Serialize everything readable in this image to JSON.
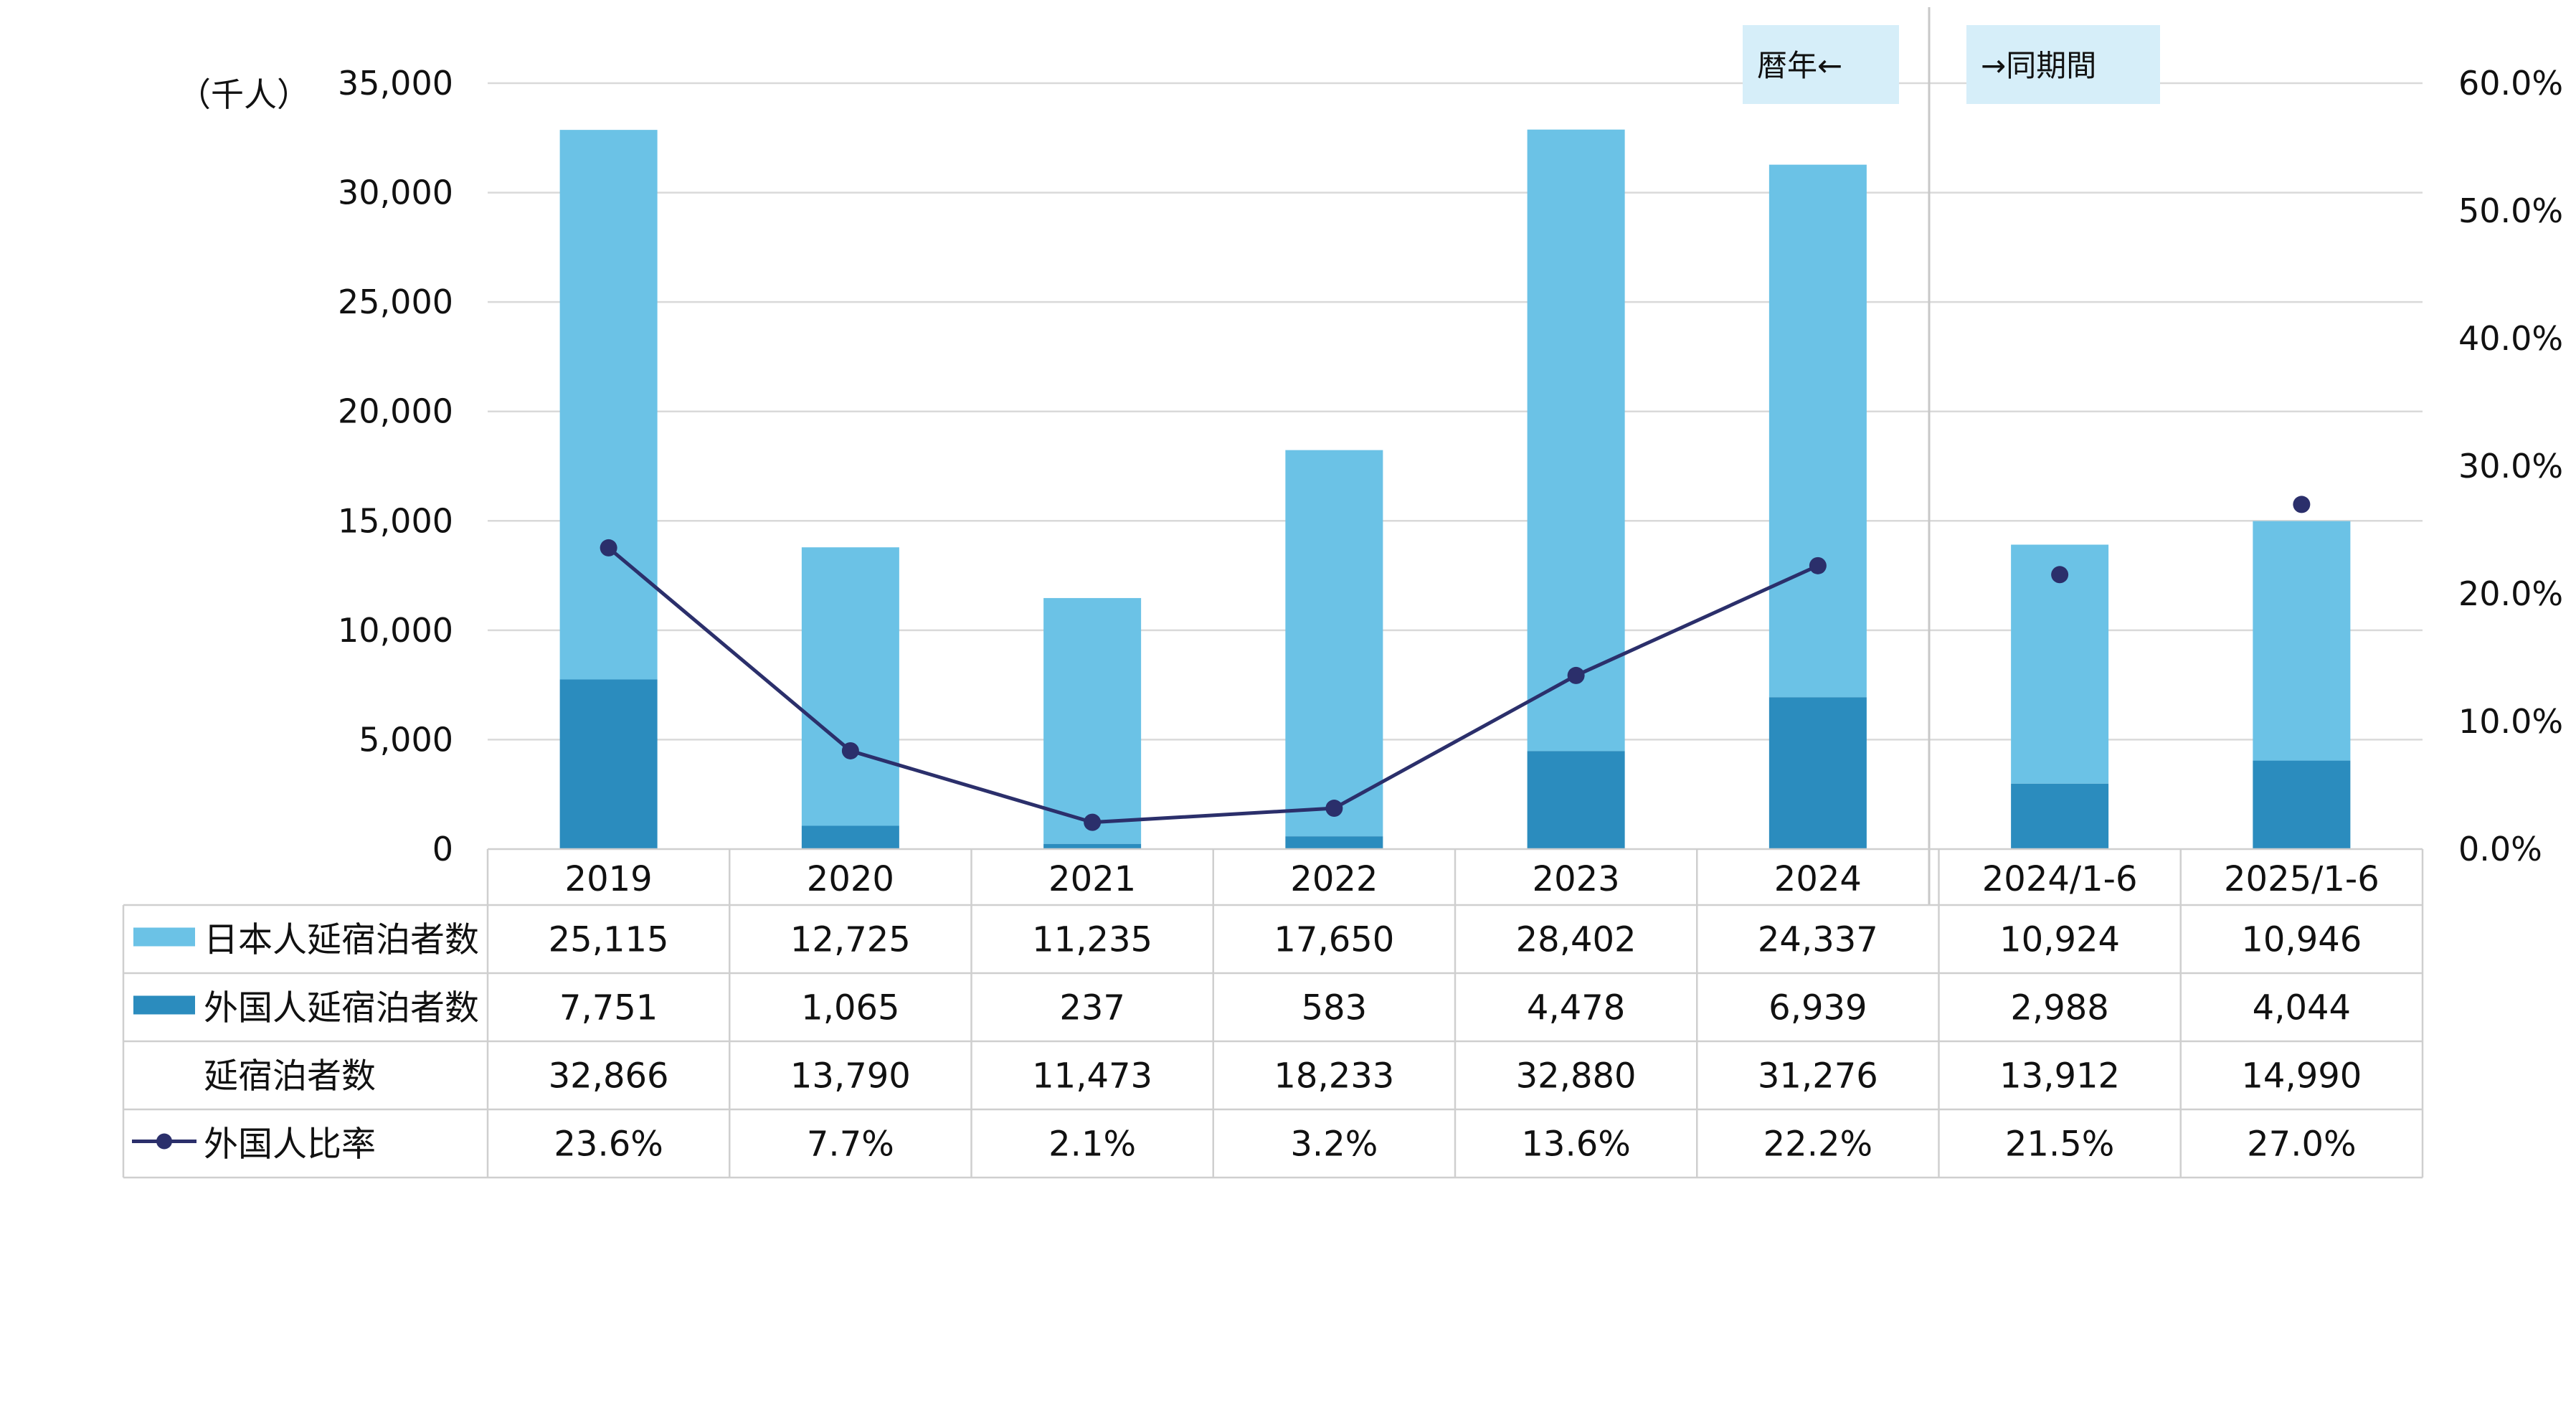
{
  "chart_data": {
    "type": "bar",
    "stacked": true,
    "unit_label": "（千人）",
    "categories": [
      "2019",
      "2020",
      "2021",
      "2022",
      "2023",
      "2024",
      "2024/1-6",
      "2025/1-6"
    ],
    "period_labels": {
      "calendar": "暦年←",
      "same_period": "→同期間"
    },
    "series": [
      {
        "name": "日本人延宿泊者数",
        "type": "bar",
        "axis": "left",
        "color": "#6BC2E6",
        "values": [
          25115,
          12725,
          11235,
          17650,
          28402,
          24337,
          10924,
          10946
        ],
        "labels": [
          "25,115",
          "12,725",
          "11,235",
          "17,650",
          "28,402",
          "24,337",
          "10,924",
          "10,946"
        ]
      },
      {
        "name": "外国人延宿泊者数",
        "type": "bar",
        "axis": "left",
        "color": "#2B8CBE",
        "values": [
          7751,
          1065,
          237,
          583,
          4478,
          6939,
          2988,
          4044
        ],
        "labels": [
          "7,751",
          "1,065",
          "237",
          "583",
          "4,478",
          "6,939",
          "2,988",
          "4,044"
        ]
      },
      {
        "name": "延宿泊者数",
        "type": "total",
        "values": [
          32866,
          13790,
          11473,
          18233,
          32880,
          31276,
          13912,
          14990
        ],
        "labels": [
          "32,866",
          "13,790",
          "11,473",
          "18,233",
          "32,880",
          "31,276",
          "13,912",
          "14,990"
        ]
      },
      {
        "name": "外国人比率",
        "type": "line",
        "axis": "right",
        "color": "#2B2F6B",
        "values": [
          23.6,
          7.7,
          2.1,
          3.2,
          13.6,
          22.2,
          21.5,
          27.0
        ],
        "labels": [
          "23.6%",
          "7.7%",
          "2.1%",
          "3.2%",
          "13.6%",
          "22.2%",
          "21.5%",
          "27.0%"
        ]
      }
    ],
    "y_left": {
      "min": 0,
      "max": 35000,
      "ticks": [
        "0",
        "5,000",
        "10,000",
        "15,000",
        "20,000",
        "25,000",
        "30,000",
        "35,000"
      ]
    },
    "y_right": {
      "min": 0,
      "max": 60,
      "ticks": [
        "0.0%",
        "10.0%",
        "20.0%",
        "30.0%",
        "40.0%",
        "50.0%",
        "60.0%"
      ]
    },
    "grid": true,
    "legend": "data-table"
  }
}
